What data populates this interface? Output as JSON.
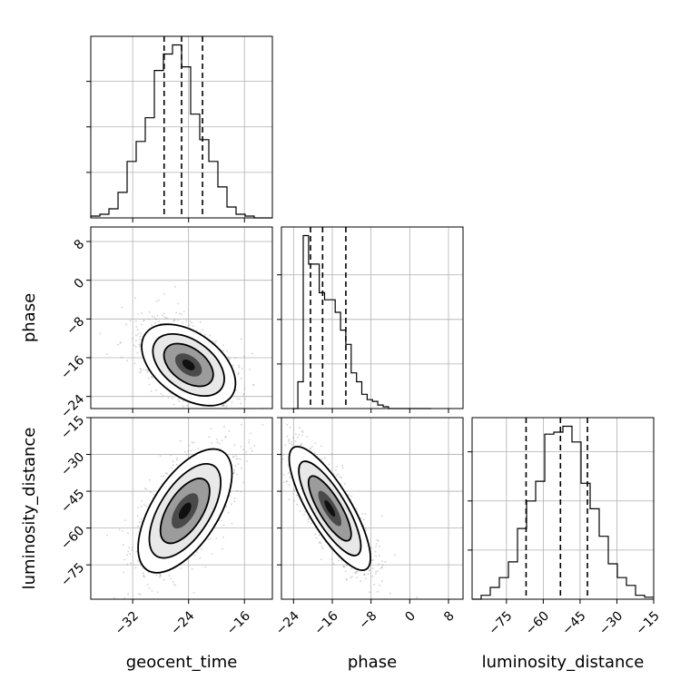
{
  "chart_data": {
    "type": "corner",
    "parameters": [
      "geocent_time",
      "phase",
      "luminosity_distance"
    ],
    "axis_labels": {
      "geocent_time": "geocent_time",
      "phase": "phase",
      "luminosity_distance": "luminosity_distance"
    },
    "ranges": {
      "geocent_time": [
        -38,
        -12
      ],
      "phase": [
        -26.5,
        11
      ],
      "luminosity_distance": [
        -89,
        -15
      ]
    },
    "ticks": {
      "geocent_time": [
        -32,
        -24,
        -16
      ],
      "phase": [
        -24,
        -16,
        -8,
        0,
        8
      ],
      "luminosity_distance": [
        -75,
        -60,
        -45,
        -30,
        -15
      ]
    },
    "tick_labels": {
      "geocent_time": [
        "−32",
        "−24",
        "−16"
      ],
      "phase": [
        "−24",
        "−16",
        "−8",
        "0",
        "8"
      ],
      "luminosity_distance": [
        "−75",
        "−60",
        "−45",
        "−30",
        "−15"
      ]
    },
    "histograms": {
      "geocent_time": {
        "edges": [
          -38,
          -36.7,
          -35.4,
          -34.1,
          -32.8,
          -31.5,
          -30.2,
          -28.9,
          -27.6,
          -26.3,
          -25.0,
          -23.7,
          -22.4,
          -21.1,
          -19.8,
          -18.5,
          -17.2,
          -15.9,
          -14.6,
          -13.3,
          -12.0
        ],
        "counts": [
          1,
          2,
          5,
          14,
          31,
          42,
          55,
          81,
          90,
          95,
          83,
          57,
          43,
          31,
          17,
          6,
          2,
          1,
          0,
          0
        ],
        "quantiles": [
          -27.5,
          -25.0,
          -22.0
        ]
      },
      "phase": {
        "edges": [
          -24.2,
          -23.1,
          -22.0,
          -20.9,
          -19.8,
          -18.7,
          -17.6,
          -16.5,
          -15.4,
          -14.3,
          -13.2,
          -12.1,
          -11.0,
          -9.9,
          -8.8,
          -7.7,
          -6.6,
          -5.5,
          -4.4,
          -3.3,
          -2.2,
          -1.1,
          0,
          1.1,
          2.2,
          3.3,
          4.4
        ],
        "counts": [
          0,
          15,
          97,
          81,
          81,
          65,
          61,
          61,
          54,
          44,
          36,
          20,
          15,
          8,
          5,
          4,
          2,
          1,
          0,
          0,
          0,
          0,
          0,
          0,
          0,
          0
        ],
        "quantiles": [
          -20.5,
          -18.0,
          -13.2
        ]
      },
      "luminosity_distance": {
        "edges": [
          -89,
          -85.3,
          -81.6,
          -77.9,
          -74.2,
          -70.5,
          -66.8,
          -63.1,
          -59.4,
          -55.7,
          -52.0,
          -48.3,
          -44.6,
          -40.9,
          -37.2,
          -33.5,
          -29.8,
          -26.1,
          -22.4,
          -18.7,
          -15.0
        ],
        "counts": [
          0,
          2,
          6,
          11,
          19,
          36,
          50,
          60,
          84,
          85,
          88,
          80,
          59,
          46,
          32,
          18,
          11,
          7,
          2,
          1
        ],
        "quantiles": [
          -67.0,
          -53.0,
          -42.0
        ]
      }
    },
    "grid": true,
    "levels": 3
  }
}
